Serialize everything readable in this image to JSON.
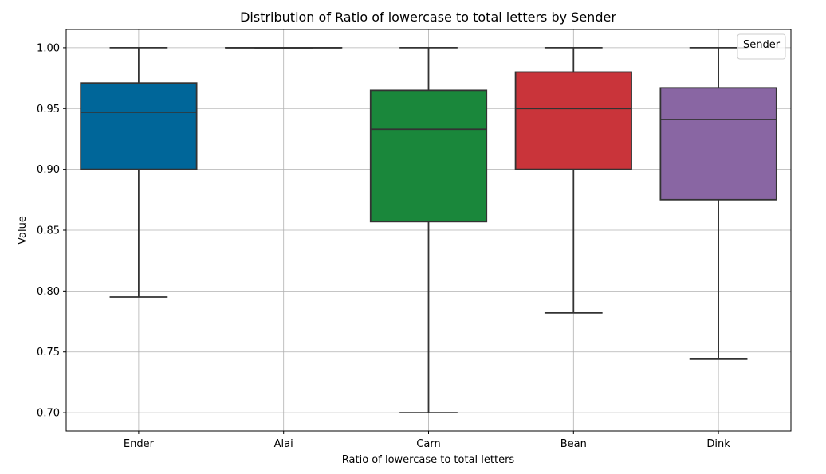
{
  "chart_data": {
    "type": "box",
    "title": "Distribution of Ratio of lowercase to total letters by Sender",
    "xlabel": "Ratio of lowercase to total letters",
    "ylabel": "Value",
    "ylim": [
      0.685,
      1.015
    ],
    "yticks": [
      0.7,
      0.75,
      0.8,
      0.85,
      0.9,
      0.95,
      1.0
    ],
    "ytick_labels": [
      "0.70",
      "0.75",
      "0.80",
      "0.85",
      "0.90",
      "0.95",
      "1.00"
    ],
    "grid": true,
    "legend": {
      "title": "Sender",
      "placement": "top-right"
    },
    "categories": [
      "Ender",
      "Alai",
      "Carn",
      "Bean",
      "Dink"
    ],
    "boxes": [
      {
        "name": "Ender",
        "whisker_low": 0.795,
        "q1": 0.9,
        "median": 0.947,
        "q3": 0.971,
        "whisker_high": 1.0,
        "color": "#006699"
      },
      {
        "name": "Alai",
        "whisker_low": 1.0,
        "q1": 1.0,
        "median": 1.0,
        "q3": 1.0,
        "whisker_high": 1.0,
        "color": "#ff7f0e"
      },
      {
        "name": "Carn",
        "whisker_low": 0.7,
        "q1": 0.857,
        "median": 0.933,
        "q3": 0.965,
        "whisker_high": 1.0,
        "color": "#1a873b"
      },
      {
        "name": "Bean",
        "whisker_low": 0.782,
        "q1": 0.9,
        "median": 0.95,
        "q3": 0.98,
        "whisker_high": 1.0,
        "color": "#c9343a"
      },
      {
        "name": "Dink",
        "whisker_low": 0.744,
        "q1": 0.875,
        "median": 0.941,
        "q3": 0.967,
        "whisker_high": 1.0,
        "color": "#8966a3"
      }
    ],
    "colors": {
      "edge": "#333333",
      "grid": "#b0b0b0"
    }
  }
}
